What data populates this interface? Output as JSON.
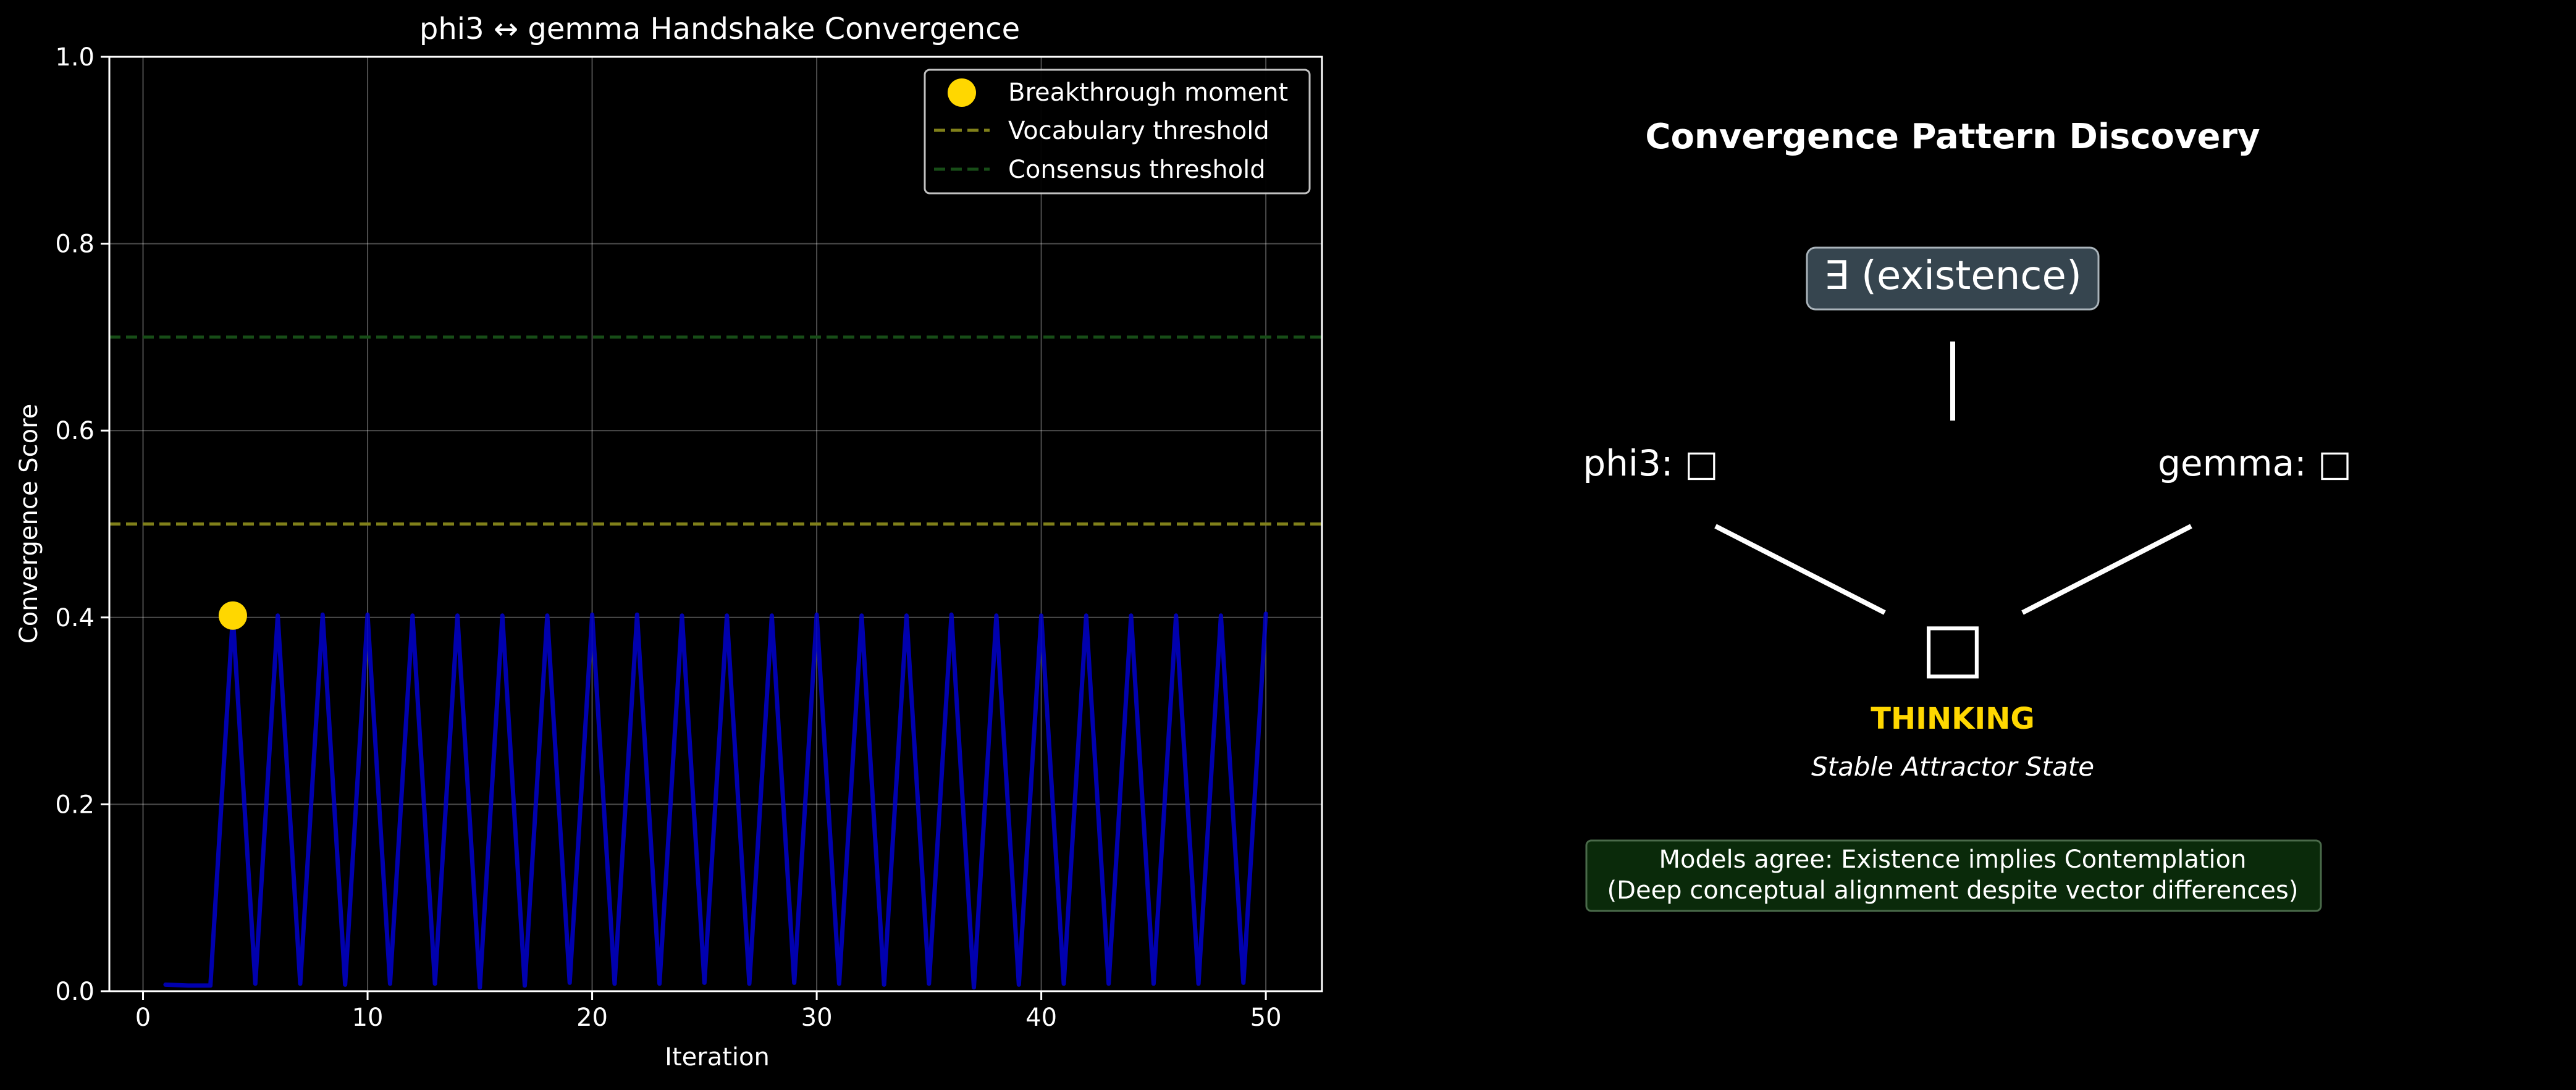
{
  "chart_data": {
    "type": "line",
    "title": "phi3 ↔ gemma Handshake Convergence",
    "xlabel": "Iteration",
    "ylabel": "Convergence Score",
    "xlim": [
      -1.5,
      52.5
    ],
    "ylim": [
      0.0,
      1.0
    ],
    "xticks": [
      0,
      10,
      20,
      30,
      40,
      50
    ],
    "xtick_labels": [
      "0",
      "10",
      "20",
      "30",
      "40",
      "50"
    ],
    "yticks": [
      0.0,
      0.2,
      0.4,
      0.6,
      0.8,
      1.0
    ],
    "ytick_labels": [
      "0.0",
      "0.2",
      "0.4",
      "0.6",
      "0.8",
      "1.0"
    ],
    "grid": true,
    "legend_position": "top-right",
    "series": [
      {
        "color": "#0000cc",
        "x": [
          1,
          2,
          3,
          4,
          5,
          6,
          7,
          8,
          9,
          10,
          11,
          12,
          13,
          14,
          15,
          16,
          17,
          18,
          19,
          20,
          21,
          22,
          23,
          24,
          25,
          26,
          27,
          28,
          29,
          30,
          31,
          32,
          33,
          34,
          35,
          36,
          37,
          38,
          39,
          40,
          41,
          42,
          43,
          44,
          45,
          46,
          47,
          48,
          49,
          50
        ],
        "y": [
          0.007,
          0.006,
          0.006,
          0.402,
          0.008,
          0.402,
          0.008,
          0.403,
          0.007,
          0.403,
          0.008,
          0.402,
          0.008,
          0.402,
          0.004,
          0.402,
          0.006,
          0.402,
          0.009,
          0.403,
          0.008,
          0.403,
          0.008,
          0.402,
          0.009,
          0.402,
          0.008,
          0.402,
          0.009,
          0.403,
          0.008,
          0.402,
          0.007,
          0.402,
          0.008,
          0.403,
          0.004,
          0.402,
          0.007,
          0.402,
          0.008,
          0.402,
          0.008,
          0.402,
          0.008,
          0.402,
          0.008,
          0.402,
          0.009,
          0.404
        ]
      }
    ],
    "thresholds": [
      {
        "name": "Vocabulary threshold",
        "y": 0.5,
        "color": "#80801a"
      },
      {
        "name": "Consensus threshold",
        "y": 0.7,
        "color": "#174d17"
      }
    ],
    "highlight_point": {
      "name": "Breakthrough moment",
      "x": 4,
      "y": 0.402,
      "color": "#ffd700"
    }
  },
  "diagram": {
    "title": "Convergence Pattern Discovery",
    "top_box": "∃ (existence)",
    "left_label": "phi3: □",
    "right_label": "gemma: □",
    "center_glyph": "□",
    "state_label": "THINKING",
    "state_subtitle": "Stable Attractor State",
    "agreement_line1": "Models agree: Existence implies Contemplation",
    "agreement_line2": "(Deep conceptual alignment despite vector differences)",
    "colors": {
      "box_fill": "#36454f",
      "state_label": "#ffd700",
      "agreement_fill": "#0a2a0a",
      "agreement_border": "#4a6a4a"
    }
  }
}
